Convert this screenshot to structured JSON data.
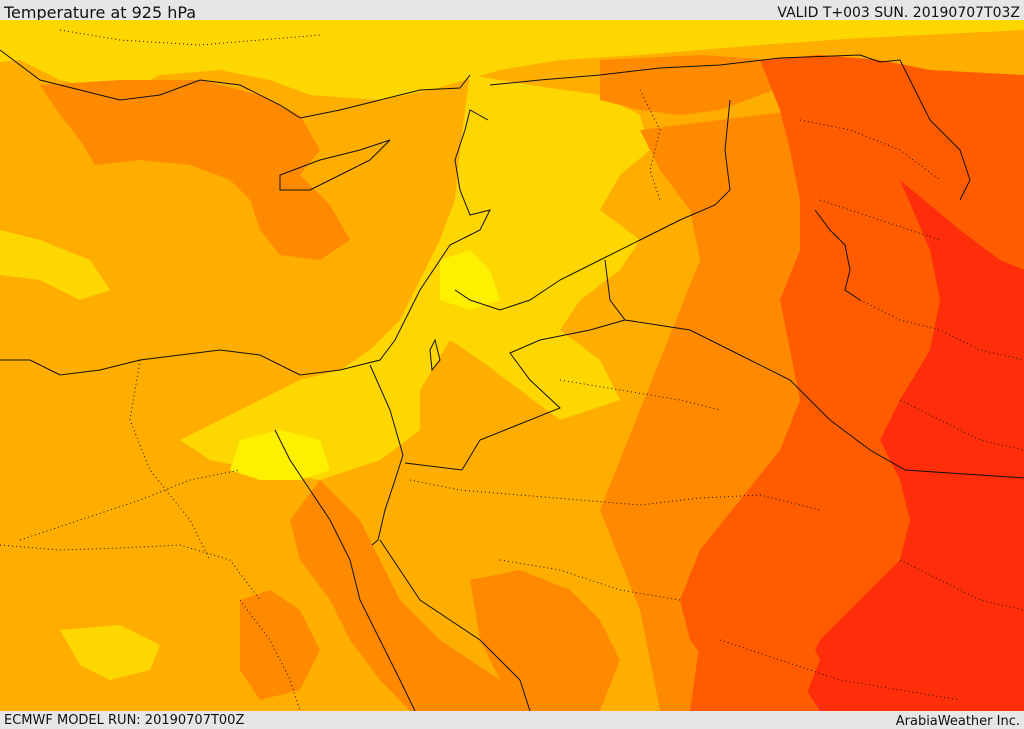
{
  "header": {
    "title": "Temperature at 925 hPa",
    "valid_time": "VALID T+003 SUN. 20190707T03Z"
  },
  "footer": {
    "model_run": "ECMWF MODEL RUN: 20190707T00Z",
    "brand": "ArabiaWeather Inc."
  },
  "map": {
    "variable": "temperature",
    "pressure_level": "925 hPa",
    "colors": {
      "level_1": "#fff000",
      "level_2": "#ffd700",
      "level_3": "#ffae00",
      "level_4": "#ff8a00",
      "level_5": "#ff5c00",
      "level_6": "#ff2e0a",
      "sea": "#ffae00",
      "border": "#111111"
    }
  }
}
